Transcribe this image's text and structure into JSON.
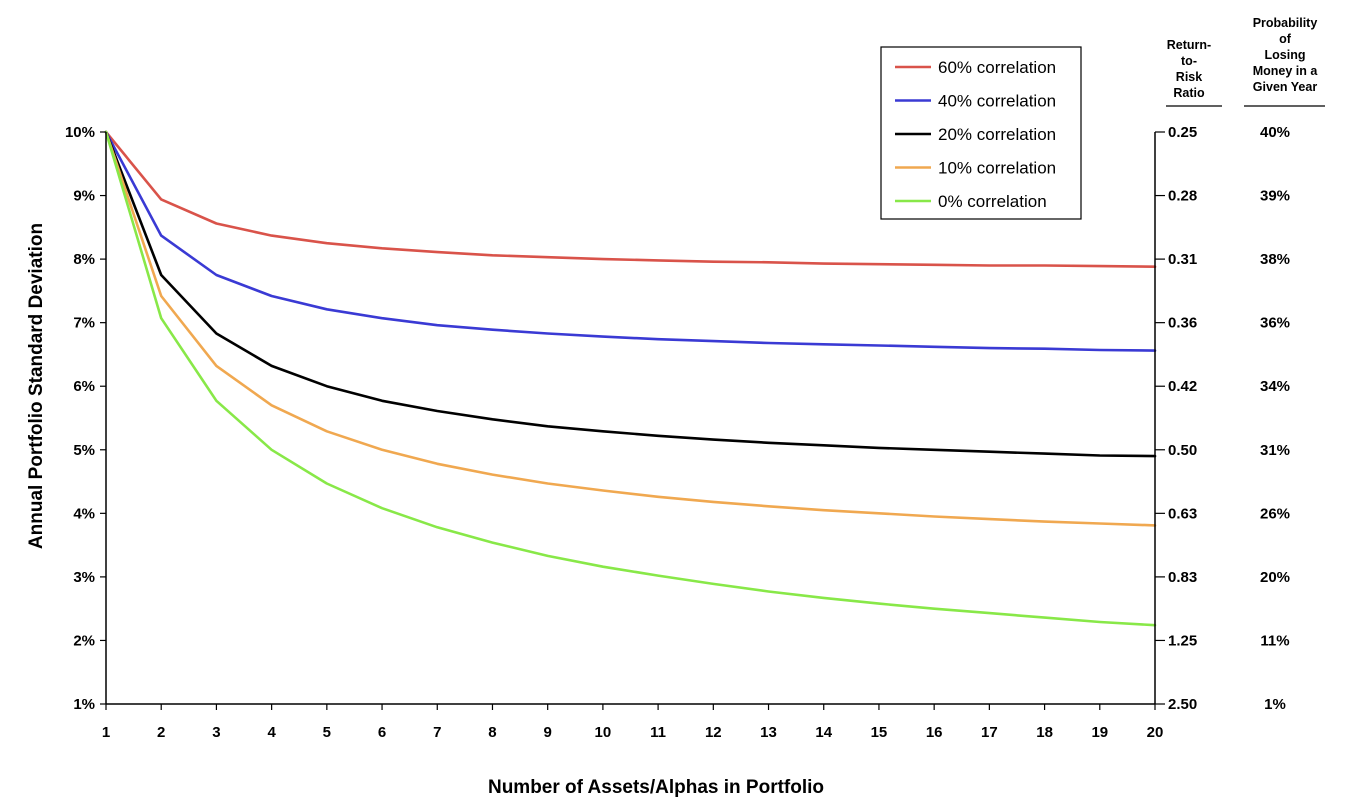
{
  "chart_data": {
    "type": "line",
    "xlabel": "Number of Assets/Alphas in Portfolio",
    "ylabel": "Annual Portfolio Standard Deviation",
    "x": [
      1,
      2,
      3,
      4,
      5,
      6,
      7,
      8,
      9,
      10,
      11,
      12,
      13,
      14,
      15,
      16,
      17,
      18,
      19,
      20
    ],
    "xlim": [
      1,
      20
    ],
    "ylim": [
      1,
      10
    ],
    "y_ticks": [
      "1%",
      "2%",
      "3%",
      "4%",
      "5%",
      "6%",
      "7%",
      "8%",
      "9%",
      "10%"
    ],
    "right_axis_header": [
      "Return-",
      "to-",
      "Risk",
      "Ratio"
    ],
    "right_axis_ticks": [
      "2.50",
      "1.25",
      "0.83",
      "0.63",
      "0.50",
      "0.42",
      "0.36",
      "0.31",
      "0.28",
      "0.25"
    ],
    "far_right_header": [
      "Probability",
      "of",
      "Losing",
      "Money in a",
      "Given Year"
    ],
    "far_right_ticks": [
      "1%",
      "11%",
      "20%",
      "26%",
      "31%",
      "34%",
      "36%",
      "38%",
      "39%",
      "40%"
    ],
    "legend_position": "top-right",
    "series": [
      {
        "name": "60% correlation",
        "color": "#d9534a",
        "values": [
          10,
          8.94,
          8.56,
          8.37,
          8.25,
          8.17,
          8.11,
          8.06,
          8.03,
          8.0,
          7.98,
          7.96,
          7.95,
          7.93,
          7.92,
          7.91,
          7.9,
          7.9,
          7.89,
          7.88
        ]
      },
      {
        "name": "40% correlation",
        "color": "#3a3ad4",
        "values": [
          10,
          8.37,
          7.75,
          7.42,
          7.21,
          7.07,
          6.96,
          6.89,
          6.83,
          6.78,
          6.74,
          6.71,
          6.68,
          6.66,
          6.64,
          6.62,
          6.6,
          6.59,
          6.57,
          6.56
        ]
      },
      {
        "name": "20% correlation",
        "color": "#000000",
        "values": [
          10,
          7.75,
          6.83,
          6.32,
          6.0,
          5.77,
          5.61,
          5.48,
          5.37,
          5.29,
          5.22,
          5.16,
          5.11,
          5.07,
          5.03,
          5.0,
          4.97,
          4.94,
          4.91,
          4.9
        ]
      },
      {
        "name": "10% correlation",
        "color": "#f0a850",
        "values": [
          10,
          7.42,
          6.32,
          5.7,
          5.29,
          5.0,
          4.78,
          4.61,
          4.47,
          4.36,
          4.26,
          4.18,
          4.11,
          4.05,
          4.0,
          3.95,
          3.91,
          3.87,
          3.84,
          3.81
        ]
      },
      {
        "name": "0% correlation",
        "color": "#88e848",
        "values": [
          10,
          7.07,
          5.77,
          5.0,
          4.47,
          4.08,
          3.78,
          3.54,
          3.33,
          3.16,
          3.02,
          2.89,
          2.77,
          2.67,
          2.58,
          2.5,
          2.43,
          2.36,
          2.29,
          2.24
        ]
      }
    ]
  }
}
